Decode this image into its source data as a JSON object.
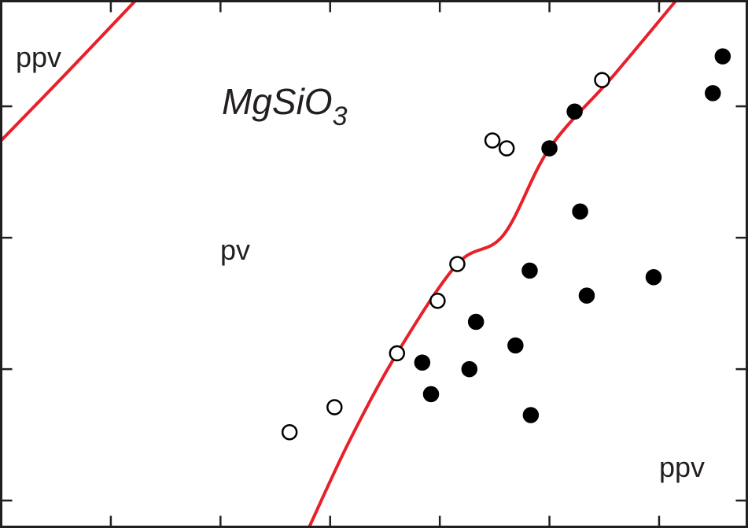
{
  "chart_data": {
    "type": "scatter",
    "xlim": [
      0,
      6.8
    ],
    "ylim": [
      -0.2,
      3.8
    ],
    "xticks": [
      1,
      2,
      3,
      4,
      5,
      6
    ],
    "yticks": [
      0,
      1,
      2,
      3
    ],
    "formula": {
      "main": "MgSiO",
      "subscript": "3"
    },
    "annotations": [
      "ppv",
      "pv",
      "ppv"
    ],
    "series": [
      {
        "name": "pv",
        "color": "#ffffff",
        "x": [
          2.63,
          3.04,
          3.61,
          3.98,
          4.16,
          4.48,
          4.61,
          5.48
        ],
        "values": [
          0.52,
          0.71,
          1.12,
          1.52,
          1.8,
          2.74,
          2.68,
          3.2
        ]
      },
      {
        "name": "ppv",
        "color": "#000000",
        "x": [
          3.84,
          3.92,
          4.27,
          4.33,
          4.69,
          4.83,
          4.82,
          5.0,
          5.23,
          5.28,
          5.34,
          5.95,
          6.49,
          6.58
        ],
        "values": [
          1.05,
          0.81,
          1.0,
          1.36,
          1.18,
          0.65,
          1.75,
          2.68,
          2.96,
          2.2,
          1.56,
          1.7,
          3.1,
          3.38
        ]
      }
    ],
    "boundaries": [
      {
        "color": "#e8202a",
        "x": [
          0,
          0.57,
          1.22
        ],
        "values": [
          2.74,
          3.23,
          3.8
        ]
      },
      {
        "color": "#e8202a",
        "x": [
          2.81,
          3.18,
          3.61,
          4.16,
          4.58,
          5.0,
          5.58,
          6.15
        ],
        "values": [
          -0.2,
          0.46,
          1.12,
          1.8,
          2.02,
          2.68,
          3.23,
          3.8
        ]
      }
    ]
  }
}
